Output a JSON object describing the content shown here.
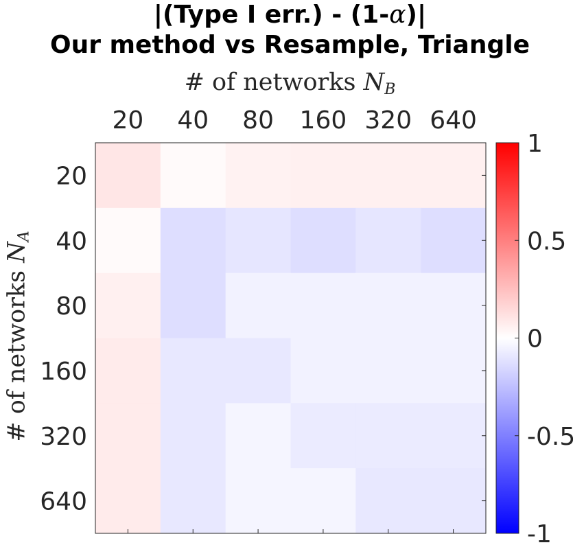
{
  "title": {
    "line1_prefix": "|(Type I err.) - (1-",
    "line1_alpha": "α",
    "line1_suffix": ")|",
    "line2": "Our method vs Resample, Triangle"
  },
  "xlabel": {
    "text": "# of networks ",
    "symbol": "N",
    "subscript": "B"
  },
  "ylabel": {
    "text": "# of networks ",
    "symbol": "N",
    "subscript": "A"
  },
  "chart_data": {
    "type": "heatmap",
    "title": "|(Type I err.) - (1-α)| Our method vs Resample, Triangle",
    "xlabel": "# of networks N_B",
    "ylabel": "# of networks N_A",
    "x_categories": [
      "20",
      "40",
      "80",
      "160",
      "320",
      "640"
    ],
    "y_categories": [
      "20",
      "40",
      "80",
      "160",
      "320",
      "640"
    ],
    "x_axis_position": "top",
    "values": [
      [
        0.1,
        0.02,
        0.05,
        0.06,
        0.06,
        0.06
      ],
      [
        0.02,
        -0.13,
        -0.1,
        -0.13,
        -0.1,
        -0.13
      ],
      [
        0.06,
        -0.13,
        -0.05,
        -0.05,
        -0.05,
        -0.05
      ],
      [
        0.08,
        -0.09,
        -0.09,
        -0.05,
        -0.05,
        -0.05
      ],
      [
        0.08,
        -0.09,
        -0.04,
        -0.08,
        -0.08,
        -0.08
      ],
      [
        0.08,
        -0.09,
        -0.04,
        -0.04,
        -0.09,
        -0.09
      ]
    ],
    "colorbar": {
      "min": -1,
      "max": 1,
      "colors": [
        "#0000ff",
        "#ffffff",
        "#ff0000"
      ],
      "ticks": [
        1,
        0.5,
        0,
        -0.5,
        -1
      ],
      "tick_labels": [
        "1",
        "0.5",
        "0",
        "-0.5",
        "-1"
      ]
    }
  }
}
